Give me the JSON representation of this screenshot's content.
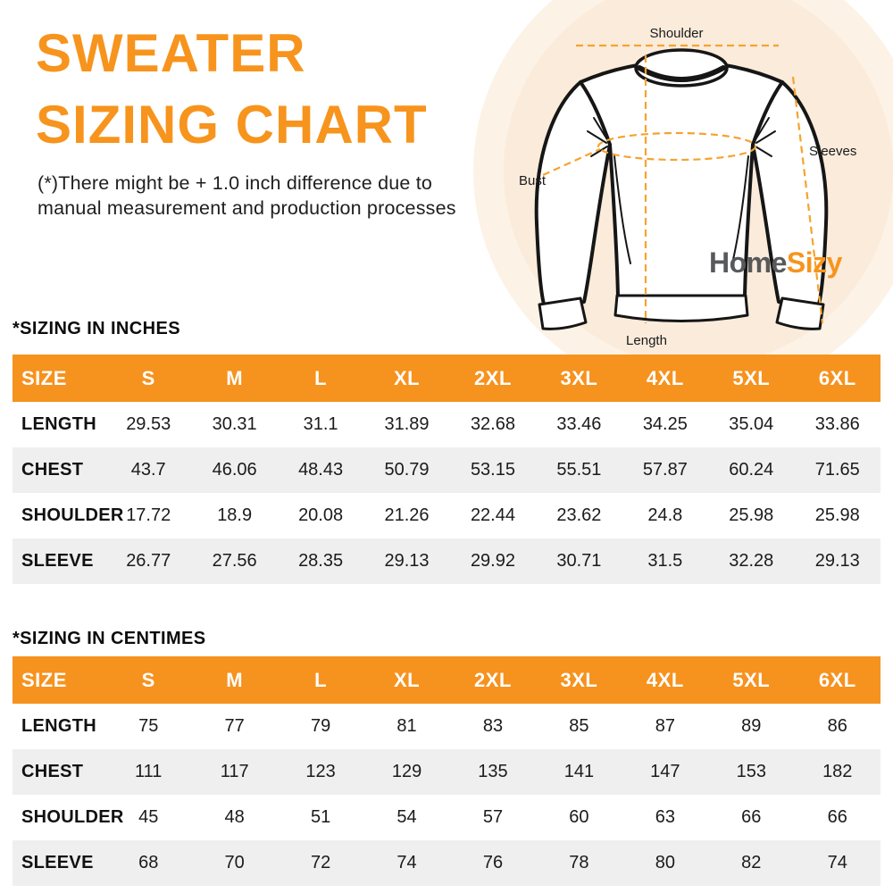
{
  "header": {
    "title_line1": "SWEATER",
    "title_line2": "SIZING CHART",
    "disclaimer_line1": "(*)There might be + 1.0 inch difference due to",
    "disclaimer_line2": "manual measurement and production processes"
  },
  "diagram": {
    "labels": {
      "shoulder": "Shoulder",
      "sleeves": "Sleeves",
      "bust": "Bust",
      "length": "Length"
    },
    "logo": {
      "part1": "Home",
      "part2": "Sizy"
    }
  },
  "colors": {
    "accent_orange": "#f7941d",
    "table_header_orange": "#f6921e",
    "stripe_gray": "#efefef",
    "logo_gray": "#58595b",
    "dashed_line_orange": "#f5a32e",
    "circle_outer": "#fcf2e6",
    "circle_inner": "#faebdb"
  },
  "tables": [
    {
      "heading": "*SIZING IN INCHES",
      "columns": [
        "SIZE",
        "S",
        "M",
        "L",
        "XL",
        "2XL",
        "3XL",
        "4XL",
        "5XL",
        "6XL"
      ],
      "rows": [
        {
          "label": "LENGTH",
          "values": [
            "29.53",
            "30.31",
            "31.1",
            "31.89",
            "32.68",
            "33.46",
            "34.25",
            "35.04",
            "33.86"
          ]
        },
        {
          "label": "CHEST",
          "values": [
            "43.7",
            "46.06",
            "48.43",
            "50.79",
            "53.15",
            "55.51",
            "57.87",
            "60.24",
            "71.65"
          ]
        },
        {
          "label": "SHOULDER",
          "values": [
            "17.72",
            "18.9",
            "20.08",
            "21.26",
            "22.44",
            "23.62",
            "24.8",
            "25.98",
            "25.98"
          ]
        },
        {
          "label": "SLEEVE",
          "values": [
            "26.77",
            "27.56",
            "28.35",
            "29.13",
            "29.92",
            "30.71",
            "31.5",
            "32.28",
            "29.13"
          ]
        }
      ]
    },
    {
      "heading": "*SIZING IN CENTIMES",
      "columns": [
        "SIZE",
        "S",
        "M",
        "L",
        "XL",
        "2XL",
        "3XL",
        "4XL",
        "5XL",
        "6XL"
      ],
      "rows": [
        {
          "label": "LENGTH",
          "values": [
            "75",
            "77",
            "79",
            "81",
            "83",
            "85",
            "87",
            "89",
            "86"
          ]
        },
        {
          "label": "CHEST",
          "values": [
            "111",
            "117",
            "123",
            "129",
            "135",
            "141",
            "147",
            "153",
            "182"
          ]
        },
        {
          "label": "SHOULDER",
          "values": [
            "45",
            "48",
            "51",
            "54",
            "57",
            "60",
            "63",
            "66",
            "66"
          ]
        },
        {
          "label": "SLEEVE",
          "values": [
            "68",
            "70",
            "72",
            "74",
            "76",
            "78",
            "80",
            "82",
            "74"
          ]
        }
      ]
    }
  ]
}
